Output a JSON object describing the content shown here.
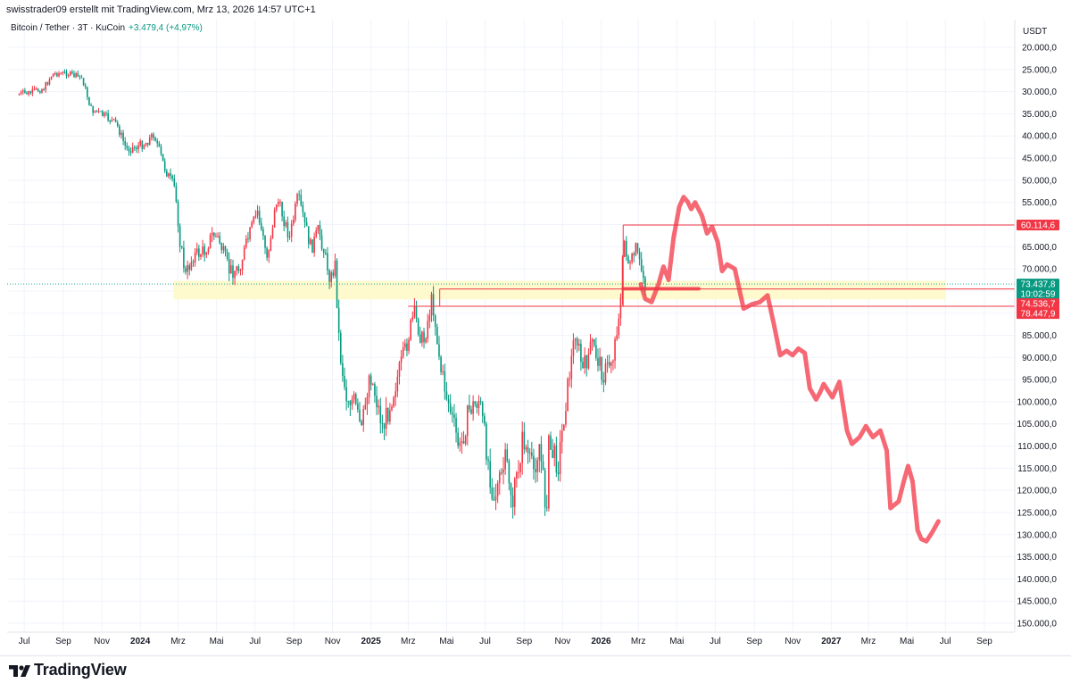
{
  "header": {
    "author_line": "swisstrader09 erstellt mit TradingView.com, Mrz 13, 2026 14:57 UTC+1",
    "symbol_line": "Bitcoin / Tether · 3T · KuCoin",
    "change": "+3.479,4 (+4,97%)",
    "currency": "USDT"
  },
  "footer": {
    "brand": "TradingView"
  },
  "colors": {
    "up": "#089981",
    "down": "#f23645",
    "drawing": "#f23645",
    "zone": "#fff9c4",
    "accent_green": "#22ab94"
  },
  "chart_data": {
    "type": "candlestick",
    "inverted_price_axis": true,
    "y_ticks": [
      20000,
      25000,
      30000,
      35000,
      40000,
      45000,
      50000,
      55000,
      60000,
      65000,
      70000,
      75000,
      80000,
      85000,
      90000,
      95000,
      100000,
      105000,
      110000,
      115000,
      120000,
      125000,
      130000,
      135000,
      140000,
      145000,
      150000
    ],
    "y_tick_labels": [
      "20.000,0",
      "25.000,0",
      "30.000,0",
      "35.000,0",
      "40.000,0",
      "45.000,0",
      "50.000,0",
      "55.000,0",
      "60.000,0",
      "65.000,0",
      "70.000,0",
      "75.000,0",
      "80.000,0",
      "85.000,0",
      "90.000,0",
      "95.000,0",
      "100.000,0",
      "105.000,0",
      "110.000,0",
      "115.000,0",
      "120.000,0",
      "125.000,0",
      "130.000,0",
      "135.000,0",
      "140.000,0",
      "145.000,0",
      "150.000,0"
    ],
    "ylim": [
      17000,
      152000
    ],
    "x_ticks": [
      {
        "label": "Jul",
        "date": "2023-07-01",
        "bold": false
      },
      {
        "label": "Sep",
        "date": "2023-09-01",
        "bold": false
      },
      {
        "label": "Nov",
        "date": "2023-11-01",
        "bold": false
      },
      {
        "label": "2024",
        "date": "2024-01-01",
        "bold": true
      },
      {
        "label": "Mrz",
        "date": "2024-03-01",
        "bold": false
      },
      {
        "label": "Mai",
        "date": "2024-05-01",
        "bold": false
      },
      {
        "label": "Jul",
        "date": "2024-07-01",
        "bold": false
      },
      {
        "label": "Sep",
        "date": "2024-09-01",
        "bold": false
      },
      {
        "label": "Nov",
        "date": "2024-11-01",
        "bold": false
      },
      {
        "label": "2025",
        "date": "2025-01-01",
        "bold": true
      },
      {
        "label": "Mrz",
        "date": "2025-03-01",
        "bold": false
      },
      {
        "label": "Mai",
        "date": "2025-05-01",
        "bold": false
      },
      {
        "label": "Jul",
        "date": "2025-07-01",
        "bold": false
      },
      {
        "label": "Sep",
        "date": "2025-09-01",
        "bold": false
      },
      {
        "label": "Nov",
        "date": "2025-11-01",
        "bold": false
      },
      {
        "label": "2026",
        "date": "2026-01-01",
        "bold": true
      },
      {
        "label": "Mrz",
        "date": "2026-03-01",
        "bold": false
      },
      {
        "label": "Mai",
        "date": "2026-05-01",
        "bold": false
      },
      {
        "label": "Jul",
        "date": "2026-07-01",
        "bold": false
      },
      {
        "label": "Sep",
        "date": "2026-09-01",
        "bold": false
      },
      {
        "label": "Nov",
        "date": "2026-11-01",
        "bold": false
      },
      {
        "label": "2027",
        "date": "2027-01-01",
        "bold": true
      },
      {
        "label": "Mrz",
        "date": "2027-03-01",
        "bold": false
      },
      {
        "label": "Mai",
        "date": "2027-05-01",
        "bold": false
      },
      {
        "label": "Jul",
        "date": "2027-07-01",
        "bold": false
      },
      {
        "label": "Sep",
        "date": "2027-09-01",
        "bold": false
      }
    ],
    "x_range": [
      "2023-06-18",
      "2027-10-05"
    ],
    "price_path": [
      [
        "2023-06-20",
        30500
      ],
      [
        "2023-07-10",
        30300
      ],
      [
        "2023-08-01",
        29200
      ],
      [
        "2023-08-15",
        26000
      ],
      [
        "2023-09-05",
        25800
      ],
      [
        "2023-10-01",
        27000
      ],
      [
        "2023-10-15",
        34000
      ],
      [
        "2023-11-05",
        35500
      ],
      [
        "2023-11-25",
        37500
      ],
      [
        "2023-12-10",
        43000
      ],
      [
        "2023-12-25",
        42500
      ],
      [
        "2024-01-10",
        41500
      ],
      [
        "2024-01-23",
        39500
      ],
      [
        "2024-02-08",
        47000
      ],
      [
        "2024-02-25",
        52000
      ],
      [
        "2024-03-05",
        65000
      ],
      [
        "2024-03-13",
        71500
      ],
      [
        "2024-03-25",
        67000
      ],
      [
        "2024-04-12",
        66000
      ],
      [
        "2024-04-25",
        62000
      ],
      [
        "2024-05-05",
        63500
      ],
      [
        "2024-05-21",
        70500
      ],
      [
        "2024-06-05",
        70000
      ],
      [
        "2024-06-25",
        61000
      ],
      [
        "2024-07-05",
        57000
      ],
      [
        "2024-07-20",
        67500
      ],
      [
        "2024-08-05",
        54000
      ],
      [
        "2024-08-25",
        63000
      ],
      [
        "2024-09-07",
        53500
      ],
      [
        "2024-09-28",
        65500
      ],
      [
        "2024-10-10",
        61000
      ],
      [
        "2024-10-29",
        72500
      ],
      [
        "2024-11-05",
        69000
      ],
      [
        "2024-11-12",
        88000
      ],
      [
        "2024-11-22",
        98500
      ],
      [
        "2024-12-05",
        100000
      ],
      [
        "2024-12-17",
        107000
      ],
      [
        "2024-12-30",
        93000
      ],
      [
        "2025-01-20",
        106000
      ],
      [
        "2025-02-03",
        99000
      ],
      [
        "2025-02-25",
        88000
      ],
      [
        "2025-03-10",
        80000
      ],
      [
        "2025-03-25",
        87000
      ],
      [
        "2025-04-08",
        76500
      ],
      [
        "2025-04-22",
        93000
      ],
      [
        "2025-05-10",
        104000
      ],
      [
        "2025-05-22",
        111000
      ],
      [
        "2025-06-05",
        102000
      ],
      [
        "2025-06-22",
        99500
      ],
      [
        "2025-07-14",
        121500
      ],
      [
        "2025-07-25",
        118000
      ],
      [
        "2025-08-03",
        113000
      ],
      [
        "2025-08-14",
        123000
      ],
      [
        "2025-08-30",
        108000
      ],
      [
        "2025-09-15",
        116000
      ],
      [
        "2025-09-25",
        109500
      ],
      [
        "2025-10-06",
        125000
      ],
      [
        "2025-10-10",
        110000
      ],
      [
        "2025-10-25",
        114000
      ],
      [
        "2025-11-05",
        101000
      ],
      [
        "2025-11-21",
        84000
      ],
      [
        "2025-12-03",
        93000
      ],
      [
        "2025-12-18",
        87000
      ],
      [
        "2026-01-05",
        94000
      ],
      [
        "2026-01-20",
        89500
      ],
      [
        "2026-02-01",
        77000
      ],
      [
        "2026-02-06",
        63000
      ],
      [
        "2026-02-15",
        70000
      ],
      [
        "2026-02-25",
        65500
      ],
      [
        "2026-03-05",
        70000
      ],
      [
        "2026-03-13",
        73400
      ]
    ],
    "current_price": 73437.8,
    "annotations": {
      "zone": {
        "start": "2024-03-01",
        "end": "2027-07-01",
        "low": 72700,
        "high": 76900
      },
      "h_line_1": {
        "start": "2026-02-05",
        "end": "2027-10-05",
        "price": 60114.6
      },
      "h_line_2": {
        "start": "2025-04-20",
        "end": "2027-10-05",
        "price": 74536.7
      },
      "h_line_3": {
        "start": "2025-03-01",
        "end": "2027-10-05",
        "price": 78447.9
      },
      "v_line_1": {
        "date": "2025-04-20",
        "from": 74536.7,
        "to": 78447.9
      },
      "v_line_2": {
        "date": "2026-02-05",
        "from": 60114.6,
        "to": 78447.9
      },
      "thick_segment": {
        "start": "2026-02-05",
        "end": "2026-06-05",
        "price": 74500
      },
      "projection_path": [
        [
          "2026-03-05",
          73500
        ],
        [
          "2026-03-12",
          76800
        ],
        [
          "2026-03-22",
          77500
        ],
        [
          "2026-04-02",
          73500
        ],
        [
          "2026-04-10",
          69500
        ],
        [
          "2026-04-18",
          72500
        ],
        [
          "2026-04-26",
          63000
        ],
        [
          "2026-05-05",
          56000
        ],
        [
          "2026-05-12",
          53800
        ],
        [
          "2026-05-18",
          54800
        ],
        [
          "2026-05-24",
          56500
        ],
        [
          "2026-05-30",
          55000
        ],
        [
          "2026-06-10",
          58000
        ],
        [
          "2026-06-18",
          62000
        ],
        [
          "2026-06-26",
          60500
        ],
        [
          "2026-07-05",
          64000
        ],
        [
          "2026-07-12",
          70500
        ],
        [
          "2026-07-20",
          69000
        ],
        [
          "2026-08-01",
          70000
        ],
        [
          "2026-08-15",
          79000
        ],
        [
          "2026-08-28",
          78000
        ],
        [
          "2026-09-10",
          77500
        ],
        [
          "2026-09-22",
          76000
        ],
        [
          "2026-10-02",
          82500
        ],
        [
          "2026-10-12",
          89500
        ],
        [
          "2026-10-22",
          88500
        ],
        [
          "2026-11-01",
          89500
        ],
        [
          "2026-11-10",
          88000
        ],
        [
          "2026-11-20",
          89000
        ],
        [
          "2026-11-28",
          97000
        ],
        [
          "2026-12-08",
          99500
        ],
        [
          "2026-12-14",
          98000
        ],
        [
          "2026-12-20",
          96000
        ],
        [
          "2027-01-03",
          99000
        ],
        [
          "2027-01-14",
          95500
        ],
        [
          "2027-01-26",
          106500
        ],
        [
          "2027-02-03",
          109500
        ],
        [
          "2027-02-15",
          108000
        ],
        [
          "2027-02-25",
          105500
        ],
        [
          "2027-03-08",
          108000
        ],
        [
          "2027-03-20",
          106500
        ],
        [
          "2027-03-30",
          111000
        ],
        [
          "2027-04-05",
          124000
        ],
        [
          "2027-04-18",
          122500
        ],
        [
          "2027-04-26",
          118000
        ],
        [
          "2027-05-03",
          114500
        ],
        [
          "2027-05-10",
          118000
        ],
        [
          "2027-05-18",
          129000
        ],
        [
          "2027-05-24",
          131000
        ],
        [
          "2027-06-01",
          131500
        ],
        [
          "2027-06-10",
          129500
        ],
        [
          "2027-06-20",
          127000
        ]
      ]
    },
    "price_tags": [
      {
        "label": "60.114,6",
        "price": 60114.6,
        "kind": "red"
      },
      {
        "label": "73.437,8",
        "price": 73437.8,
        "kind": "green"
      },
      {
        "label": "10:02:59",
        "price": 73437.8,
        "kind": "green-timer"
      },
      {
        "label": "74.536,7",
        "price": 74536.7,
        "kind": "red"
      },
      {
        "label": "78.447,9",
        "price": 78447.9,
        "kind": "red"
      }
    ]
  }
}
